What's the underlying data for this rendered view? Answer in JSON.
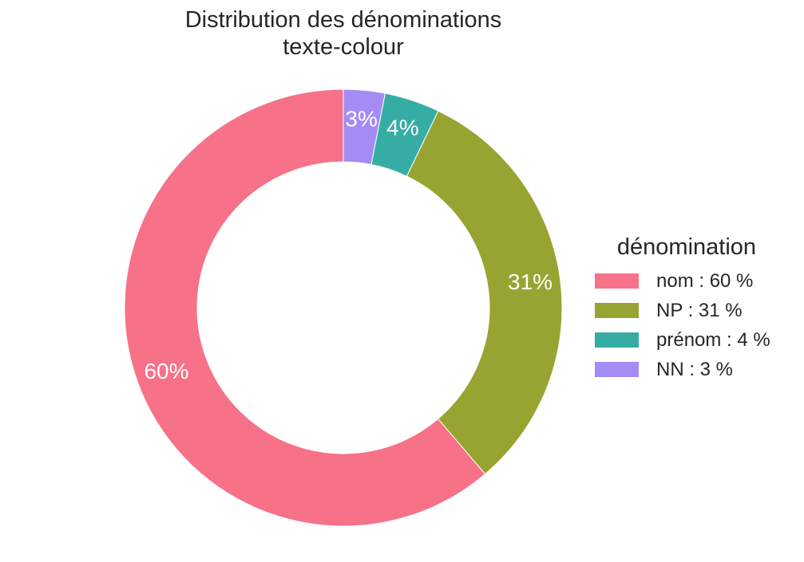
{
  "chart_data": {
    "type": "pie",
    "title_lines": [
      "Distribution des dénominations",
      "texte-colour"
    ],
    "legend_title": "dénomination",
    "slices": [
      {
        "label": "nom",
        "value": 60,
        "pct_label": "60%",
        "legend_label": "nom : 60 %",
        "color": "#F77189"
      },
      {
        "label": "NP",
        "value": 31,
        "pct_label": "31%",
        "legend_label": "NP : 31 %",
        "color": "#97A431"
      },
      {
        "label": "prénom",
        "value": 4,
        "pct_label": "4%",
        "legend_label": "prénom : 4 %",
        "color": "#36ADA4"
      },
      {
        "label": "NN",
        "value": 3,
        "pct_label": "3%",
        "legend_label": "NN : 3 %",
        "color": "#A48CF4"
      }
    ],
    "start_angle": "90-degrees",
    "direction": "counterclockwise",
    "legend_position": "right"
  }
}
